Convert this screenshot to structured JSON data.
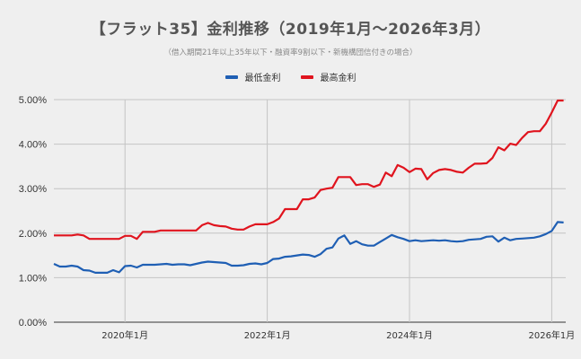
{
  "chart_data": {
    "type": "line",
    "title": "【フラット35】金利推移（2019年1月～2026年3月）",
    "subtitle": "（借入期間21年以上35年以下・融資率9割以下・新機構団信付きの場合）",
    "xlabel": "",
    "ylabel": "",
    "ylim": [
      0,
      5
    ],
    "y_ticks": [
      "0.00%",
      "1.00%",
      "2.00%",
      "3.00%",
      "4.00%",
      "5.00%"
    ],
    "x_ticks": [
      "2020年1月",
      "2022年1月",
      "2024年1月",
      "2026年1月"
    ],
    "x_start": "2019-01",
    "x_end": "2026-03",
    "grid": true,
    "legend_position": "top",
    "series": [
      {
        "name": "最低金利",
        "color": "#1f5fb4",
        "values": [
          1.31,
          1.25,
          1.25,
          1.27,
          1.25,
          1.17,
          1.16,
          1.11,
          1.11,
          1.11,
          1.17,
          1.12,
          1.26,
          1.27,
          1.23,
          1.29,
          1.29,
          1.29,
          1.3,
          1.31,
          1.29,
          1.3,
          1.3,
          1.28,
          1.31,
          1.34,
          1.36,
          1.35,
          1.34,
          1.33,
          1.27,
          1.27,
          1.28,
          1.31,
          1.32,
          1.3,
          1.33,
          1.42,
          1.43,
          1.47,
          1.48,
          1.5,
          1.52,
          1.51,
          1.47,
          1.53,
          1.65,
          1.68,
          1.88,
          1.95,
          1.76,
          1.82,
          1.75,
          1.72,
          1.72,
          1.8,
          1.88,
          1.96,
          1.91,
          1.87,
          1.82,
          1.84,
          1.82,
          1.83,
          1.84,
          1.83,
          1.84,
          1.82,
          1.81,
          1.82,
          1.85,
          1.86,
          1.87,
          1.92,
          1.93,
          1.81,
          1.9,
          1.84,
          1.87,
          1.88,
          1.89,
          1.9,
          1.93,
          1.98,
          2.05,
          2.25,
          2.24
        ]
      },
      {
        "name": "最高金利",
        "color": "#e0141e",
        "values": [
          1.95,
          1.95,
          1.95,
          1.95,
          1.97,
          1.95,
          1.87,
          1.87,
          1.87,
          1.87,
          1.87,
          1.87,
          1.94,
          1.94,
          1.87,
          2.03,
          2.03,
          2.03,
          2.06,
          2.06,
          2.06,
          2.06,
          2.06,
          2.06,
          2.06,
          2.18,
          2.23,
          2.18,
          2.16,
          2.15,
          2.1,
          2.08,
          2.08,
          2.15,
          2.2,
          2.2,
          2.2,
          2.25,
          2.33,
          2.54,
          2.54,
          2.54,
          2.76,
          2.76,
          2.8,
          2.97,
          3.0,
          3.02,
          3.26,
          3.26,
          3.26,
          3.08,
          3.1,
          3.1,
          3.04,
          3.09,
          3.36,
          3.28,
          3.53,
          3.47,
          3.37,
          3.45,
          3.44,
          3.21,
          3.35,
          3.42,
          3.44,
          3.42,
          3.38,
          3.36,
          3.47,
          3.56,
          3.56,
          3.57,
          3.69,
          3.93,
          3.86,
          4.01,
          3.98,
          4.14,
          4.27,
          4.29,
          4.29,
          4.46,
          4.71,
          4.98,
          4.98
        ]
      }
    ]
  }
}
